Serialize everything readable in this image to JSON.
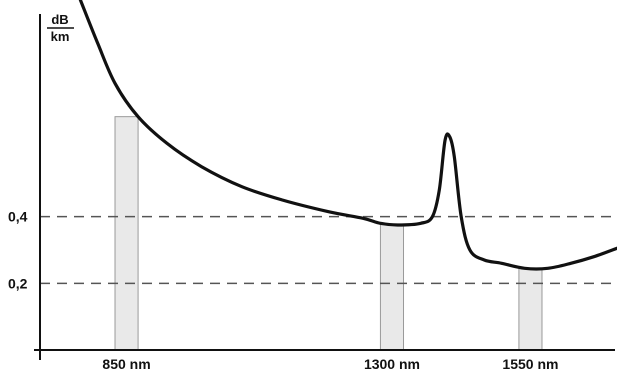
{
  "chart_data": {
    "type": "line",
    "title": "",
    "xlabel": "",
    "ylabel": "",
    "unit": {
      "numerator": "dB",
      "denominator": "km"
    },
    "x_tick_labels": [
      "850 nm",
      "1300 nm",
      "1550 nm"
    ],
    "y_tick_labels": [
      "0,4",
      "0,2"
    ],
    "reference_lines": [
      0.4,
      0.2
    ],
    "xlim": [
      700,
      1700
    ],
    "ylim": [
      0.0,
      1.05
    ],
    "windows": [
      {
        "label": "850 nm",
        "from": 830,
        "to": 870
      },
      {
        "label": "1300 nm",
        "from": 1290,
        "to": 1330
      },
      {
        "label": "1550 nm",
        "from": 1530,
        "to": 1570
      }
    ],
    "series": [
      {
        "values": [
          {
            "x": 770,
            "y": 1.05
          },
          {
            "x": 800,
            "y": 0.92
          },
          {
            "x": 830,
            "y": 0.8
          },
          {
            "x": 870,
            "y": 0.7
          },
          {
            "x": 920,
            "y": 0.62
          },
          {
            "x": 980,
            "y": 0.55
          },
          {
            "x": 1050,
            "y": 0.49
          },
          {
            "x": 1120,
            "y": 0.45
          },
          {
            "x": 1200,
            "y": 0.415
          },
          {
            "x": 1260,
            "y": 0.395
          },
          {
            "x": 1290,
            "y": 0.38
          },
          {
            "x": 1320,
            "y": 0.375
          },
          {
            "x": 1360,
            "y": 0.38
          },
          {
            "x": 1380,
            "y": 0.4
          },
          {
            "x": 1392,
            "y": 0.48
          },
          {
            "x": 1402,
            "y": 0.63
          },
          {
            "x": 1410,
            "y": 0.64
          },
          {
            "x": 1418,
            "y": 0.58
          },
          {
            "x": 1430,
            "y": 0.4
          },
          {
            "x": 1445,
            "y": 0.3
          },
          {
            "x": 1470,
            "y": 0.27
          },
          {
            "x": 1500,
            "y": 0.26
          },
          {
            "x": 1540,
            "y": 0.245
          },
          {
            "x": 1580,
            "y": 0.245
          },
          {
            "x": 1620,
            "y": 0.26
          },
          {
            "x": 1660,
            "y": 0.28
          },
          {
            "x": 1700,
            "y": 0.305
          }
        ]
      }
    ]
  }
}
